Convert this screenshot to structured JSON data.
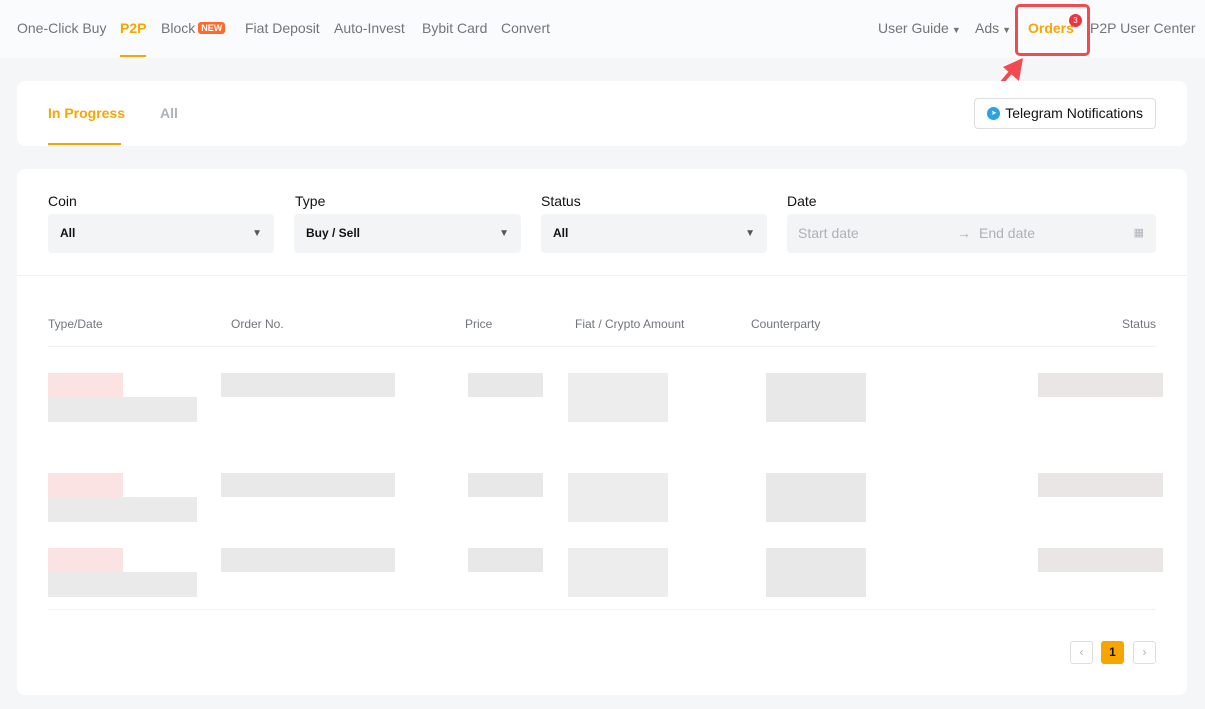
{
  "nav": {
    "left": [
      "One-Click Buy",
      "P2P",
      "Block",
      "Fiat Deposit",
      "Auto-Invest",
      "Bybit Card",
      "Convert"
    ],
    "new_badge": "NEW",
    "user_guide": "User Guide",
    "ads": "Ads",
    "orders": "Orders",
    "orders_count": "3",
    "user_center": "P2P User Center",
    "accent": "#f7a600"
  },
  "tabs": {
    "in_progress": "In Progress",
    "all": "All",
    "telegram": "Telegram Notifications"
  },
  "filters": {
    "coin_label": "Coin",
    "coin": "All",
    "type_label": "Type",
    "type": "Buy / Sell",
    "status_label": "Status",
    "status": "All",
    "date_label": "Date",
    "start": "Start date",
    "end": "End date"
  },
  "table": {
    "headers": [
      "Type/Date",
      "Order No.",
      "Price",
      "Fiat / Crypto Amount",
      "Counterparty",
      "Status"
    ]
  },
  "pagination": {
    "prev": "‹",
    "page": "1",
    "next": "›"
  }
}
